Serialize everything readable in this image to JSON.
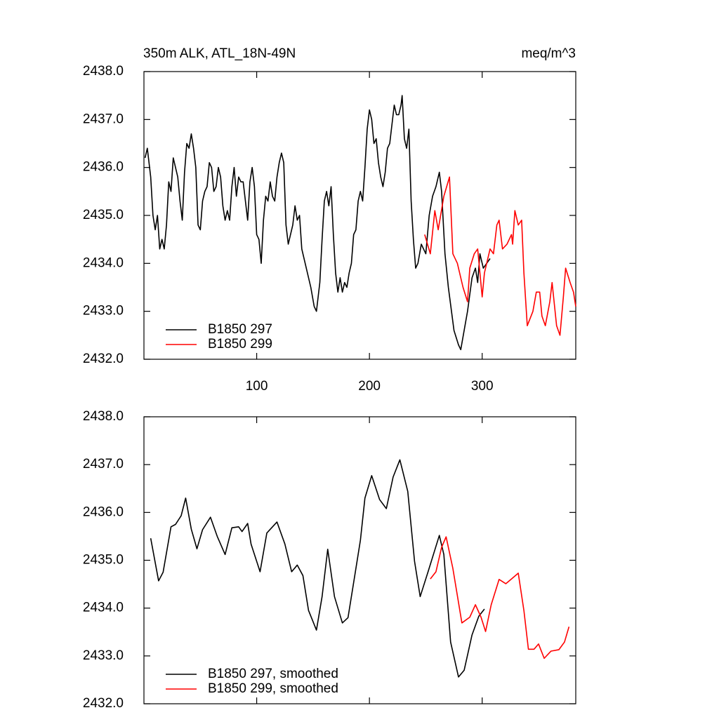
{
  "chart_data": [
    {
      "type": "line",
      "title": "350m ALK, ATL_18N-49N",
      "units": "meq/m^3",
      "xlim": [
        0,
        383
      ],
      "xticks": [
        100,
        200,
        300
      ],
      "xtick_labels": true,
      "ylim": [
        2432,
        2438
      ],
      "yticks": [
        {
          "value": 2432,
          "label": "2432.0"
        },
        {
          "value": 2433,
          "label": "2433.0"
        },
        {
          "value": 2434,
          "label": "2434.0"
        },
        {
          "value": 2435,
          "label": "2435.0"
        },
        {
          "value": 2436,
          "label": "2436.0"
        },
        {
          "value": 2437,
          "label": "2437.0"
        },
        {
          "value": 2438,
          "label": "2438.0"
        }
      ],
      "legend": "lower left",
      "series": [
        {
          "name": "B1850 297",
          "color": "#000000",
          "x": [
            1,
            3,
            6,
            8,
            10,
            12,
            14,
            16,
            18,
            20,
            22,
            24,
            26,
            28,
            30,
            32,
            34,
            36,
            38,
            40,
            42,
            44,
            46,
            48,
            50,
            52,
            54,
            56,
            58,
            60,
            62,
            64,
            66,
            68,
            70,
            72,
            74,
            76,
            78,
            80,
            82,
            84,
            86,
            88,
            90,
            92,
            94,
            96,
            98,
            100,
            102,
            104,
            106,
            108,
            110,
            112,
            114,
            116,
            118,
            120,
            122,
            124,
            126,
            128,
            130,
            132,
            134,
            136,
            138,
            140,
            144,
            148,
            151,
            153,
            156,
            158,
            160,
            162,
            164,
            166,
            168,
            170,
            172,
            174,
            176,
            178,
            180,
            182,
            184,
            186,
            188,
            190,
            192,
            194,
            196,
            198,
            200,
            202,
            204,
            206,
            208,
            210,
            212,
            214,
            216,
            218,
            220,
            222,
            224,
            226,
            228,
            229,
            231,
            233,
            235,
            237,
            239,
            241,
            243,
            246,
            250,
            253,
            256,
            259,
            262,
            264,
            267,
            270,
            275,
            279,
            281,
            284,
            287,
            291,
            294,
            296,
            298,
            301,
            304,
            307
          ],
          "values": [
            2436.2,
            2436.4,
            2435.8,
            2435.0,
            2434.7,
            2435.0,
            2434.3,
            2434.5,
            2434.3,
            2434.8,
            2435.7,
            2435.5,
            2436.2,
            2436.0,
            2435.8,
            2435.3,
            2434.9,
            2435.9,
            2436.5,
            2436.4,
            2436.7,
            2436.4,
            2436.0,
            2434.8,
            2434.7,
            2435.3,
            2435.5,
            2435.6,
            2436.1,
            2436.0,
            2435.5,
            2435.6,
            2436.0,
            2435.8,
            2435.2,
            2434.9,
            2435.1,
            2434.9,
            2435.6,
            2436.0,
            2435.4,
            2435.8,
            2435.7,
            2435.7,
            2435.3,
            2434.9,
            2435.7,
            2436.0,
            2435.6,
            2434.6,
            2434.5,
            2434.0,
            2434.9,
            2435.4,
            2435.3,
            2435.7,
            2435.4,
            2435.3,
            2435.8,
            2436.1,
            2436.3,
            2436.1,
            2434.8,
            2434.4,
            2434.6,
            2434.8,
            2435.2,
            2434.9,
            2435.0,
            2434.3,
            2433.9,
            2433.5,
            2433.1,
            2433.0,
            2433.6,
            2434.5,
            2435.3,
            2435.5,
            2435.2,
            2435.6,
            2434.6,
            2433.8,
            2433.4,
            2433.7,
            2433.4,
            2433.6,
            2433.5,
            2433.8,
            2434.0,
            2434.6,
            2434.7,
            2435.3,
            2435.5,
            2435.3,
            2436.0,
            2436.8,
            2437.2,
            2437.0,
            2436.5,
            2436.6,
            2436.1,
            2435.8,
            2435.6,
            2435.9,
            2436.4,
            2436.5,
            2436.9,
            2437.3,
            2437.1,
            2437.1,
            2437.3,
            2437.5,
            2436.6,
            2436.4,
            2436.8,
            2435.3,
            2434.5,
            2433.9,
            2434.0,
            2434.4,
            2434.2,
            2435.0,
            2435.4,
            2435.6,
            2435.9,
            2435.5,
            2434.2,
            2433.5,
            2432.6,
            2432.3,
            2432.2,
            2432.6,
            2433.0,
            2433.7,
            2433.9,
            2433.6,
            2434.2,
            2433.9,
            2434.0,
            2434.1
          ]
        },
        {
          "name": "B1850 299",
          "color": "#ff0000",
          "x": [
            249,
            254,
            258,
            261,
            266,
            271,
            274,
            278,
            283,
            287,
            289,
            293,
            296,
            300,
            302,
            307,
            310,
            313,
            315,
            318,
            322,
            326,
            327,
            329,
            332,
            335,
            337,
            340,
            345,
            348,
            351,
            353,
            356,
            360,
            362,
            366,
            369,
            372,
            374,
            378,
            381,
            383
          ],
          "values": [
            2434.6,
            2434.2,
            2435.1,
            2434.7,
            2435.4,
            2435.8,
            2434.2,
            2434.0,
            2433.5,
            2433.2,
            2433.9,
            2434.2,
            2434.3,
            2433.3,
            2433.8,
            2434.3,
            2434.2,
            2434.8,
            2434.9,
            2434.3,
            2434.4,
            2434.6,
            2434.4,
            2435.1,
            2434.8,
            2434.9,
            2433.8,
            2432.7,
            2433.0,
            2433.4,
            2433.4,
            2432.9,
            2432.7,
            2433.2,
            2433.6,
            2432.7,
            2432.5,
            2433.3,
            2433.9,
            2433.6,
            2433.4,
            2433.1
          ]
        }
      ]
    },
    {
      "type": "line",
      "xlim": [
        0,
        383
      ],
      "xticks": [
        100,
        200,
        300
      ],
      "xtick_labels": false,
      "ylim": [
        2432,
        2438
      ],
      "yticks": [
        {
          "value": 2432,
          "label": "2432.0"
        },
        {
          "value": 2433,
          "label": "2433.0"
        },
        {
          "value": 2434,
          "label": "2434.0"
        },
        {
          "value": 2435,
          "label": "2435.0"
        },
        {
          "value": 2436,
          "label": "2436.0"
        },
        {
          "value": 2437,
          "label": "2437.0"
        },
        {
          "value": 2438,
          "label": "2438.0"
        }
      ],
      "legend": "lower left",
      "series": [
        {
          "name": "B1850 297, smoothed",
          "color": "#000000",
          "x": [
            6,
            13,
            17,
            24,
            28,
            33,
            37,
            42,
            47,
            52,
            59,
            65,
            72,
            78,
            84,
            87,
            92,
            95,
            103,
            109,
            118,
            125,
            131,
            136,
            141,
            146,
            153,
            158,
            163,
            169,
            176,
            181,
            187,
            192,
            196,
            202,
            209,
            215,
            221,
            227,
            234,
            240,
            245,
            252,
            262,
            266,
            272,
            279,
            284,
            291,
            297,
            302
          ],
          "values": [
            2435.46,
            2434.57,
            2434.75,
            2435.7,
            2435.75,
            2435.93,
            2436.3,
            2435.65,
            2435.24,
            2435.64,
            2435.9,
            2435.5,
            2435.12,
            2435.68,
            2435.7,
            2435.6,
            2435.77,
            2435.34,
            2434.76,
            2435.57,
            2435.8,
            2435.34,
            2434.76,
            2434.9,
            2434.68,
            2433.95,
            2433.54,
            2434.24,
            2435.23,
            2434.24,
            2433.69,
            2433.8,
            2434.68,
            2435.42,
            2436.3,
            2436.77,
            2436.27,
            2436.08,
            2436.74,
            2437.1,
            2436.44,
            2434.98,
            2434.24,
            2434.76,
            2435.52,
            2435.12,
            2433.29,
            2432.56,
            2432.7,
            2433.44,
            2433.83,
            2433.98
          ]
        },
        {
          "name": "B1850 299, smoothed",
          "color": "#ff0000",
          "x": [
            254,
            259,
            264,
            268,
            274,
            282,
            289,
            294,
            299,
            303,
            308,
            315,
            321,
            326,
            332,
            337,
            341,
            346,
            350,
            355,
            361,
            368,
            373,
            377
          ],
          "values": [
            2434.61,
            2434.76,
            2435.27,
            2435.49,
            2434.83,
            2433.69,
            2433.81,
            2434.07,
            2433.81,
            2433.51,
            2434.07,
            2434.6,
            2434.51,
            2434.61,
            2434.73,
            2433.95,
            2433.14,
            2433.14,
            2433.25,
            2432.95,
            2433.1,
            2433.13,
            2433.29,
            2433.61
          ]
        }
      ]
    }
  ]
}
